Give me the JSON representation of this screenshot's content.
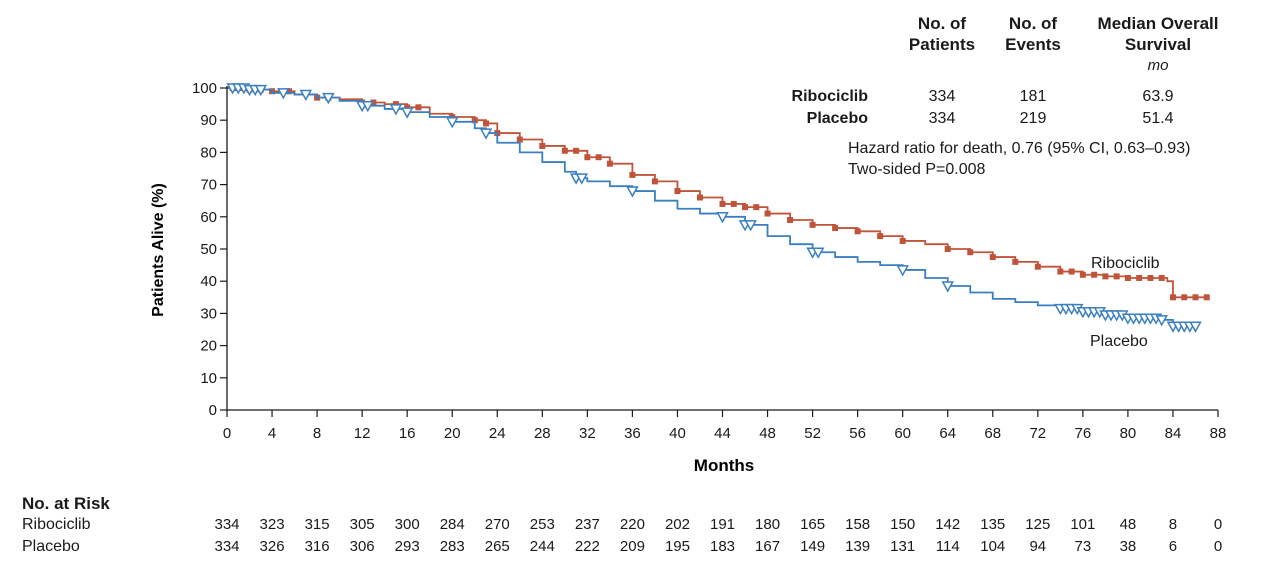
{
  "chart_data": {
    "type": "line",
    "title": "",
    "xlabel": "Months",
    "ylabel": "Patients Alive (%)",
    "xlim": [
      0,
      88
    ],
    "ylim": [
      0,
      100
    ],
    "x_ticks": [
      0,
      4,
      8,
      12,
      16,
      20,
      24,
      28,
      32,
      36,
      40,
      44,
      48,
      52,
      56,
      60,
      64,
      68,
      72,
      76,
      80,
      84,
      88
    ],
    "y_ticks": [
      0,
      10,
      20,
      30,
      40,
      50,
      60,
      70,
      80,
      90,
      100
    ],
    "series": [
      {
        "name": "Ribociclib",
        "color": "#c0543a",
        "censor_marker": "square",
        "points": [
          [
            0,
            100
          ],
          [
            2,
            99.5
          ],
          [
            4,
            99
          ],
          [
            6,
            98
          ],
          [
            8,
            97
          ],
          [
            10,
            96.5
          ],
          [
            12,
            95.5
          ],
          [
            14,
            95
          ],
          [
            16,
            94
          ],
          [
            18,
            92
          ],
          [
            20,
            91
          ],
          [
            22,
            90
          ],
          [
            23,
            89
          ],
          [
            24,
            86
          ],
          [
            26,
            84
          ],
          [
            28,
            82
          ],
          [
            30,
            80.5
          ],
          [
            32,
            78.5
          ],
          [
            34,
            76.5
          ],
          [
            36,
            73
          ],
          [
            38,
            71
          ],
          [
            40,
            68
          ],
          [
            42,
            66
          ],
          [
            44,
            64
          ],
          [
            46,
            63
          ],
          [
            48,
            61
          ],
          [
            50,
            59
          ],
          [
            52,
            57.5
          ],
          [
            54,
            56.5
          ],
          [
            56,
            55.5
          ],
          [
            58,
            54
          ],
          [
            60,
            52.5
          ],
          [
            62,
            51.5
          ],
          [
            64,
            50
          ],
          [
            66,
            49
          ],
          [
            68,
            47.5
          ],
          [
            70,
            46
          ],
          [
            72,
            44.5
          ],
          [
            74,
            43
          ],
          [
            76,
            42
          ],
          [
            78,
            41.5
          ],
          [
            80,
            41
          ],
          [
            83.5,
            40
          ],
          [
            84,
            35
          ],
          [
            87,
            35
          ]
        ],
        "censored_x": [
          0.5,
          1,
          1.5,
          2,
          3,
          4,
          5.5,
          8,
          9,
          12,
          13,
          15,
          16,
          17,
          20,
          22,
          23,
          24,
          26,
          28,
          30,
          31,
          32,
          33,
          34,
          36,
          38,
          40,
          42,
          44,
          45,
          46,
          47,
          48,
          50,
          52,
          54,
          56,
          58,
          60,
          64,
          66,
          68,
          70,
          72,
          74,
          75,
          76,
          77,
          78,
          79,
          80,
          81,
          82,
          83,
          84,
          85,
          86,
          87
        ]
      },
      {
        "name": "Placebo",
        "color": "#3a7fbf",
        "censor_marker": "triangle",
        "points": [
          [
            0,
            100
          ],
          [
            2,
            99.5
          ],
          [
            4,
            98.5
          ],
          [
            6,
            98
          ],
          [
            8,
            97
          ],
          [
            10,
            96
          ],
          [
            12,
            94.5
          ],
          [
            14,
            93.5
          ],
          [
            16,
            92.5
          ],
          [
            18,
            91
          ],
          [
            20,
            89.5
          ],
          [
            22,
            87.5
          ],
          [
            23,
            86
          ],
          [
            24,
            83
          ],
          [
            26,
            80
          ],
          [
            28,
            77
          ],
          [
            30,
            74
          ],
          [
            31,
            72
          ],
          [
            32,
            71
          ],
          [
            34,
            69.5
          ],
          [
            36,
            68
          ],
          [
            38,
            65
          ],
          [
            40,
            62.5
          ],
          [
            42,
            61
          ],
          [
            44,
            60
          ],
          [
            46,
            57.5
          ],
          [
            48,
            54
          ],
          [
            50,
            51.5
          ],
          [
            52,
            49
          ],
          [
            54,
            47.5
          ],
          [
            56,
            46
          ],
          [
            58,
            45
          ],
          [
            60,
            43.5
          ],
          [
            62,
            41
          ],
          [
            64,
            38.5
          ],
          [
            66,
            36.5
          ],
          [
            68,
            34.5
          ],
          [
            70,
            33.5
          ],
          [
            72,
            32.5
          ],
          [
            74,
            31.5
          ],
          [
            76,
            30.5
          ],
          [
            78,
            29.5
          ],
          [
            80,
            28.5
          ],
          [
            83,
            28
          ],
          [
            84,
            26
          ],
          [
            86,
            26
          ]
        ],
        "censored_x": [
          0.5,
          1,
          1.5,
          2,
          2.5,
          3,
          5,
          7,
          9,
          12,
          12.5,
          15,
          16,
          20,
          23,
          31,
          31.5,
          36,
          44,
          46,
          46.5,
          52,
          52.5,
          60,
          64,
          74,
          74.5,
          75,
          75.5,
          76,
          76.5,
          77,
          77.5,
          78,
          78.5,
          79,
          79.5,
          80,
          80.5,
          81,
          81.5,
          82,
          82.5,
          83,
          84,
          84.5,
          85,
          85.5,
          86
        ]
      }
    ],
    "annotations": [
      "Ribociclib",
      "Placebo"
    ]
  },
  "summary_table": {
    "headers": {
      "patients": [
        "No. of",
        "Patients"
      ],
      "events": [
        "No. of",
        "Events"
      ],
      "median": [
        "Median Overall",
        "Survival"
      ],
      "median_unit": "mo"
    },
    "rows": [
      {
        "label": "Ribociclib",
        "patients": "334",
        "events": "181",
        "median": "63.9"
      },
      {
        "label": "Placebo",
        "patients": "334",
        "events": "219",
        "median": "51.4"
      }
    ],
    "hazard_ratio": "Hazard ratio for death, 0.76 (95% CI, 0.63–0.93)",
    "p_value": "Two-sided P=0.008"
  },
  "risk_table": {
    "title": "No. at Risk",
    "rows": [
      {
        "label": "Ribociclib",
        "values": [
          "334",
          "323",
          "315",
          "305",
          "300",
          "284",
          "270",
          "253",
          "237",
          "220",
          "202",
          "191",
          "180",
          "165",
          "158",
          "150",
          "142",
          "135",
          "125",
          "101",
          "48",
          "8",
          "0"
        ]
      },
      {
        "label": "Placebo",
        "values": [
          "334",
          "326",
          "316",
          "306",
          "293",
          "283",
          "265",
          "244",
          "222",
          "209",
          "195",
          "183",
          "167",
          "149",
          "139",
          "131",
          "114",
          "104",
          "94",
          "73",
          "38",
          "6",
          "0"
        ]
      }
    ]
  }
}
